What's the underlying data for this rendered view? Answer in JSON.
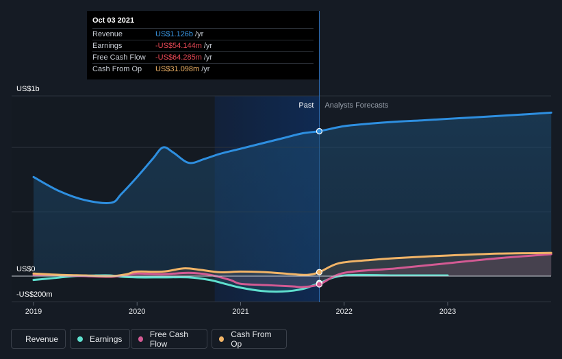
{
  "tooltip": {
    "date": "Oct 03 2021",
    "rows": [
      {
        "label": "Revenue",
        "value": "US$1.126b",
        "unit": "/yr",
        "color": "#3b9ae8"
      },
      {
        "label": "Earnings",
        "value": "-US$54.144m",
        "unit": "/yr",
        "color": "#e84855"
      },
      {
        "label": "Free Cash Flow",
        "value": "-US$64.285m",
        "unit": "/yr",
        "color": "#e84855"
      },
      {
        "label": "Cash From Op",
        "value": "US$31.098m",
        "unit": "/yr",
        "color": "#f1b467"
      }
    ]
  },
  "chart_data": {
    "type": "line",
    "y_top_label": "US$1b",
    "y_zero_label": "US$0",
    "y_bottom_label": "-US$200m",
    "ylim": [
      -200,
      1400
    ],
    "xlim": [
      2019.0,
      2024.0
    ],
    "x_ticks": [
      {
        "value": 2019,
        "label": "2019"
      },
      {
        "value": 2020,
        "label": "2020"
      },
      {
        "value": 2021,
        "label": "2021"
      },
      {
        "value": 2022,
        "label": "2022"
      },
      {
        "value": 2023,
        "label": "2023"
      }
    ],
    "past_label": "Past",
    "forecast_label": "Analysts Forecasts",
    "highlight_start": 2020.75,
    "past_end": 2021.76,
    "series": [
      {
        "name": "Revenue",
        "color": "#2e8fe0",
        "fill": true,
        "x": [
          2019.0,
          2019.25,
          2019.5,
          2019.75,
          2019.85,
          2020.0,
          2020.15,
          2020.25,
          2020.35,
          2020.5,
          2020.65,
          2020.8,
          2021.0,
          2021.2,
          2021.4,
          2021.6,
          2021.76,
          2022.0,
          2022.25,
          2022.5,
          2022.75,
          2023.0,
          2023.25,
          2023.5,
          2023.75,
          2024.0
        ],
        "y": [
          770,
          660,
          590,
          570,
          640,
          770,
          910,
          1000,
          960,
          880,
          910,
          950,
          990,
          1030,
          1070,
          1110,
          1126,
          1165,
          1185,
          1200,
          1210,
          1222,
          1233,
          1245,
          1257,
          1270
        ]
      },
      {
        "name": "Earnings",
        "color": "#5fe0cf",
        "fill": false,
        "x": [
          2019.0,
          2019.2,
          2019.4,
          2019.6,
          2019.75,
          2019.85,
          2020.0,
          2020.25,
          2020.5,
          2020.7,
          2020.85,
          2021.0,
          2021.2,
          2021.4,
          2021.6,
          2021.76,
          2022.0,
          2022.5,
          2023.0
        ],
        "y": [
          -30,
          -15,
          0,
          5,
          5,
          -5,
          -10,
          -10,
          -10,
          -30,
          -60,
          -90,
          -115,
          -120,
          -100,
          -54,
          5,
          5,
          5
        ]
      },
      {
        "name": "Free Cash Flow",
        "color": "#d35a93",
        "fill": false,
        "x": [
          2019.0,
          2019.25,
          2019.5,
          2019.75,
          2019.9,
          2020.0,
          2020.25,
          2020.5,
          2020.7,
          2020.9,
          2021.0,
          2021.25,
          2021.5,
          2021.6,
          2021.76,
          2022.0,
          2022.5,
          2023.0,
          2023.5,
          2024.0
        ],
        "y": [
          10,
          5,
          0,
          -5,
          10,
          20,
          15,
          25,
          10,
          -30,
          -60,
          -70,
          -80,
          -85,
          -64,
          25,
          60,
          100,
          140,
          170
        ]
      },
      {
        "name": "Cash From Op",
        "color": "#f1b467",
        "fill": false,
        "x": [
          2019.0,
          2019.25,
          2019.5,
          2019.75,
          2019.9,
          2020.0,
          2020.25,
          2020.45,
          2020.6,
          2020.8,
          2021.0,
          2021.25,
          2021.5,
          2021.65,
          2021.76,
          2021.95,
          2022.25,
          2022.5,
          2023.0,
          2023.5,
          2024.0
        ],
        "y": [
          20,
          10,
          5,
          0,
          15,
          35,
          35,
          60,
          50,
          30,
          35,
          30,
          15,
          10,
          31,
          100,
          125,
          140,
          160,
          175,
          180
        ]
      }
    ]
  },
  "legend": {
    "items": [
      {
        "label": "Revenue",
        "color": "#3b9ae8"
      },
      {
        "label": "Earnings",
        "color": "#5fe0cf"
      },
      {
        "label": "Free Cash Flow",
        "color": "#d35a93"
      },
      {
        "label": "Cash From Op",
        "color": "#f1b467"
      }
    ]
  }
}
